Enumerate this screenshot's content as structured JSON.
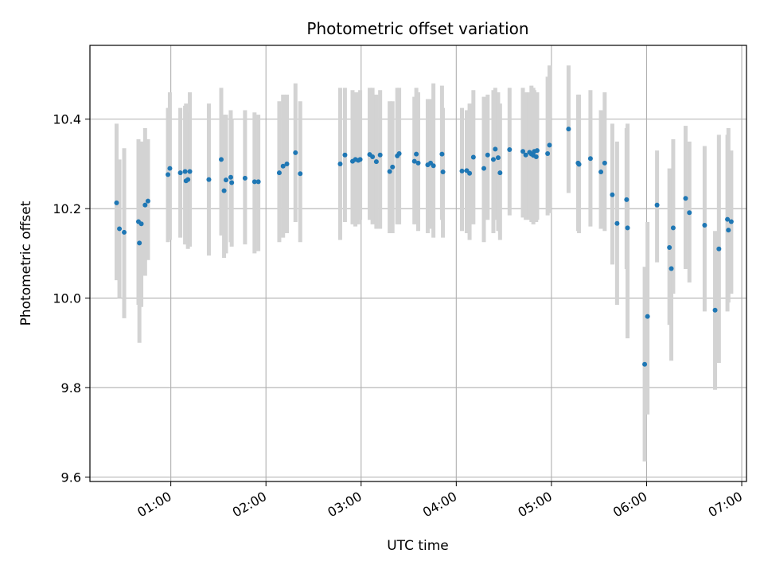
{
  "chart_data": {
    "type": "scatter",
    "title": "Photometric offset variation",
    "xlabel": "UTC time",
    "ylabel": "Photometric offset",
    "x_unit": "hours UTC",
    "xlim": [
      0.15,
      7.05
    ],
    "ylim": [
      9.59,
      10.565
    ],
    "grid": true,
    "legend": "none",
    "x_ticks": [
      {
        "value": 1,
        "label": "01:00"
      },
      {
        "value": 2,
        "label": "02:00"
      },
      {
        "value": 3,
        "label": "03:00"
      },
      {
        "value": 4,
        "label": "04:00"
      },
      {
        "value": 5,
        "label": "05:00"
      },
      {
        "value": 6,
        "label": "06:00"
      },
      {
        "value": 7,
        "label": "07:00"
      }
    ],
    "y_ticks": [
      {
        "value": 9.6,
        "label": "9.6"
      },
      {
        "value": 9.8,
        "label": "9.8"
      },
      {
        "value": 10.0,
        "label": "10.0"
      },
      {
        "value": 10.2,
        "label": "10.2"
      },
      {
        "value": 10.4,
        "label": "10.4"
      }
    ],
    "colors": {
      "point": "#1f77b4",
      "errorbar": "#d3d3d3",
      "grid": "#b0b0b0"
    },
    "series": [
      {
        "x": [
          0.43,
          0.46,
          0.51,
          0.66,
          0.67,
          0.69,
          0.73,
          0.76,
          0.97,
          0.99,
          1.1,
          1.15,
          1.16,
          1.18,
          1.2,
          1.4,
          1.53,
          1.56,
          1.58,
          1.63,
          1.64,
          1.78,
          1.88,
          1.92,
          2.14,
          2.18,
          2.22,
          2.31,
          2.36,
          2.78,
          2.83,
          2.91,
          2.94,
          2.97,
          2.99,
          3.09,
          3.12,
          3.16,
          3.2,
          3.3,
          3.33,
          3.38,
          3.4,
          3.56,
          3.58,
          3.6,
          3.7,
          3.73,
          3.76,
          3.85,
          3.86,
          4.06,
          4.11,
          4.14,
          4.18,
          4.29,
          4.33,
          4.39,
          4.41,
          4.44,
          4.46,
          4.56,
          4.7,
          4.73,
          4.77,
          4.79,
          4.81,
          4.82,
          4.84,
          4.85,
          4.96,
          4.98,
          5.18,
          5.28,
          5.29,
          5.41,
          5.52,
          5.56,
          5.64,
          5.69,
          5.79,
          5.8,
          5.98,
          6.01,
          6.11,
          6.24,
          6.26,
          6.28,
          6.41,
          6.45,
          6.61,
          6.72,
          6.76,
          6.85,
          6.86,
          6.89
        ],
        "y": [
          10.213,
          10.155,
          10.147,
          10.171,
          10.123,
          10.166,
          10.208,
          10.217,
          10.276,
          10.29,
          10.28,
          10.283,
          10.262,
          10.265,
          10.283,
          10.265,
          10.31,
          10.24,
          10.264,
          10.27,
          10.258,
          10.268,
          10.26,
          10.26,
          10.28,
          10.295,
          10.3,
          10.325,
          10.278,
          10.3,
          10.32,
          10.306,
          10.31,
          10.308,
          10.31,
          10.321,
          10.316,
          10.305,
          10.32,
          10.283,
          10.293,
          10.318,
          10.323,
          10.306,
          10.322,
          10.302,
          10.298,
          10.302,
          10.296,
          10.322,
          10.282,
          10.284,
          10.285,
          10.279,
          10.315,
          10.29,
          10.32,
          10.31,
          10.333,
          10.314,
          10.28,
          10.332,
          10.328,
          10.32,
          10.326,
          10.322,
          10.319,
          10.328,
          10.316,
          10.33,
          10.323,
          10.342,
          10.378,
          10.302,
          10.299,
          10.312,
          10.282,
          10.302,
          10.231,
          10.167,
          10.22,
          10.157,
          9.852,
          9.959,
          10.208,
          10.113,
          10.066,
          10.157,
          10.223,
          10.191,
          10.163,
          9.973,
          10.11,
          10.176,
          10.152,
          10.171
        ],
        "y_low": [
          10.04,
          10.0,
          9.955,
          9.985,
          9.9,
          9.98,
          10.05,
          10.085,
          10.125,
          10.13,
          10.135,
          10.12,
          10.12,
          10.11,
          10.115,
          10.095,
          10.14,
          10.09,
          10.1,
          10.125,
          10.115,
          10.12,
          10.1,
          10.105,
          10.125,
          10.135,
          10.145,
          10.17,
          10.125,
          10.13,
          10.17,
          10.165,
          10.16,
          10.165,
          10.175,
          10.175,
          10.165,
          10.155,
          10.155,
          10.145,
          10.145,
          10.165,
          10.165,
          10.165,
          10.175,
          10.15,
          10.145,
          10.155,
          10.135,
          10.175,
          10.135,
          10.15,
          10.145,
          10.13,
          10.165,
          10.125,
          10.175,
          10.145,
          10.175,
          10.15,
          10.13,
          10.185,
          10.18,
          10.175,
          10.175,
          10.17,
          10.165,
          10.17,
          10.17,
          10.175,
          10.185,
          10.19,
          10.235,
          10.15,
          10.145,
          10.16,
          10.155,
          10.15,
          10.075,
          9.985,
          10.065,
          9.91,
          9.635,
          9.74,
          10.08,
          9.94,
          9.86,
          10.01,
          10.065,
          10.035,
          9.97,
          9.795,
          9.855,
          9.97,
          9.99,
          10.01
        ],
        "y_high": [
          10.39,
          10.31,
          10.335,
          10.355,
          10.35,
          10.35,
          10.38,
          10.355,
          10.425,
          10.46,
          10.425,
          10.43,
          10.435,
          10.415,
          10.46,
          10.435,
          10.47,
          10.41,
          10.41,
          10.42,
          10.4,
          10.42,
          10.415,
          10.41,
          10.44,
          10.455,
          10.455,
          10.48,
          10.44,
          10.47,
          10.47,
          10.465,
          10.46,
          10.46,
          10.465,
          10.47,
          10.47,
          10.455,
          10.465,
          10.44,
          10.44,
          10.47,
          10.47,
          10.45,
          10.47,
          10.46,
          10.445,
          10.445,
          10.48,
          10.475,
          10.425,
          10.425,
          10.42,
          10.435,
          10.465,
          10.45,
          10.455,
          10.465,
          10.47,
          10.46,
          10.435,
          10.47,
          10.47,
          10.46,
          10.46,
          10.475,
          10.47,
          10.465,
          10.46,
          10.46,
          10.495,
          10.52,
          10.52,
          10.455,
          10.455,
          10.465,
          10.42,
          10.46,
          10.39,
          10.35,
          10.38,
          10.39,
          10.07,
          10.17,
          10.33,
          10.29,
          10.27,
          10.355,
          10.385,
          10.35,
          10.34,
          10.15,
          10.365,
          10.365,
          10.38,
          10.33
        ]
      }
    ]
  }
}
